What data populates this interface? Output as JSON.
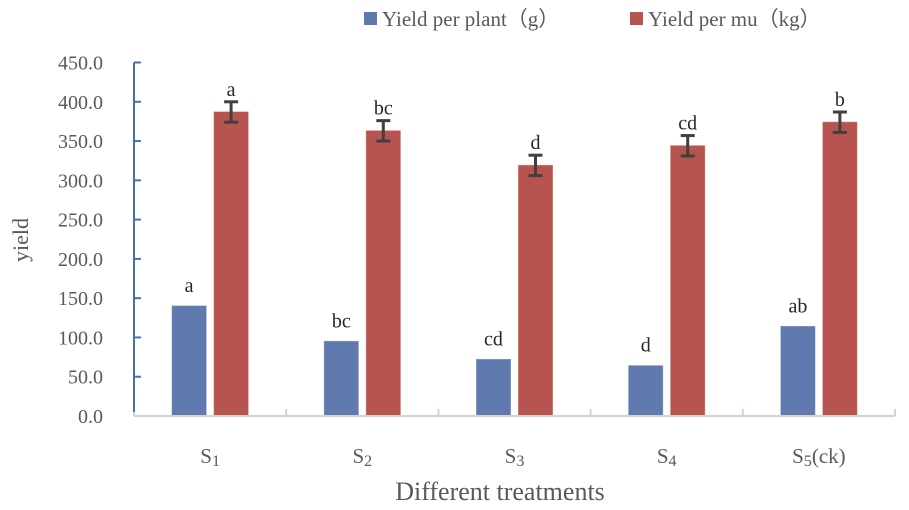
{
  "chart_data": {
    "type": "bar",
    "title": "",
    "xlabel": "Different treatments",
    "ylabel": "yield",
    "ylim": [
      0,
      450
    ],
    "yticks": [
      "0.0",
      "50.0",
      "100.0",
      "150.0",
      "200.0",
      "250.0",
      "300.0",
      "350.0",
      "400.0",
      "450.0"
    ],
    "ytick_values": [
      0,
      50,
      100,
      150,
      200,
      250,
      300,
      350,
      400,
      450
    ],
    "grid": false,
    "legend_position": "top-right",
    "categories": [
      {
        "base": "S",
        "sub": "1",
        "suffix": ""
      },
      {
        "base": "S",
        "sub": "2",
        "suffix": ""
      },
      {
        "base": "S",
        "sub": "3",
        "suffix": ""
      },
      {
        "base": "S",
        "sub": "4",
        "suffix": ""
      },
      {
        "base": "S",
        "sub": "5",
        "suffix": "(ck)"
      }
    ],
    "series": [
      {
        "name": "Yield per plant（g）",
        "color": "#6079AF",
        "values": [
          140,
          95,
          72,
          64,
          114
        ],
        "errors": null,
        "significance": [
          "a",
          "bc",
          "cd",
          "d",
          "ab"
        ]
      },
      {
        "name": "Yield per mu（kg）",
        "color": "#B85450",
        "values": [
          387,
          363,
          319,
          344,
          374
        ],
        "errors": [
          13,
          13,
          13,
          13,
          13
        ],
        "significance": [
          "a",
          "bc",
          "d",
          "cd",
          "b"
        ]
      }
    ],
    "colors": {
      "y_axis": "#4A6FB0",
      "x_axis": "#D9D2CC",
      "error_bar": "#404040",
      "text": "#595959"
    }
  }
}
